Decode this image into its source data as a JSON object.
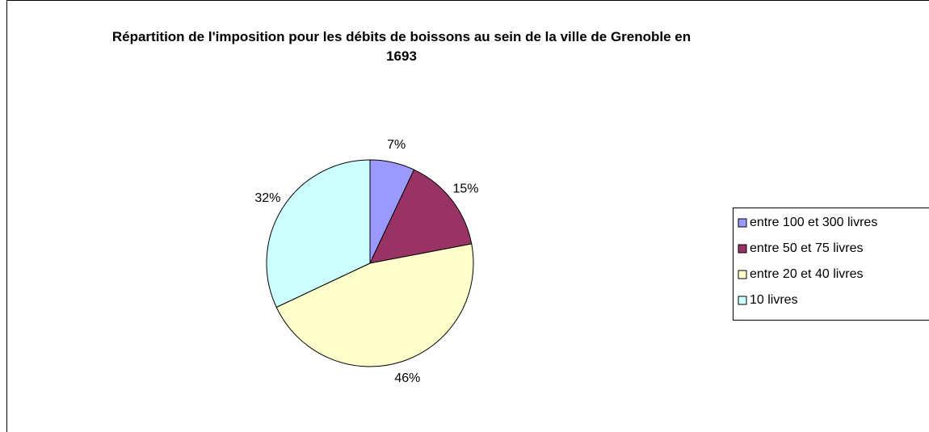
{
  "chart_data": {
    "type": "pie",
    "title": "Répartition de l'imposition pour les débits de boissons au sein de la ville de Grenoble en 1693",
    "categories": [
      "entre 100 et 300 livres",
      "entre 50 et 75 livres",
      "entre 20 et 40 livres",
      "10 livres"
    ],
    "values": [
      7,
      15,
      46,
      32
    ],
    "value_labels": [
      "7%",
      "15%",
      "46%",
      "32%"
    ],
    "colors": [
      "#9999ff",
      "#993366",
      "#ffffcc",
      "#ccffff"
    ],
    "legend": "right"
  }
}
